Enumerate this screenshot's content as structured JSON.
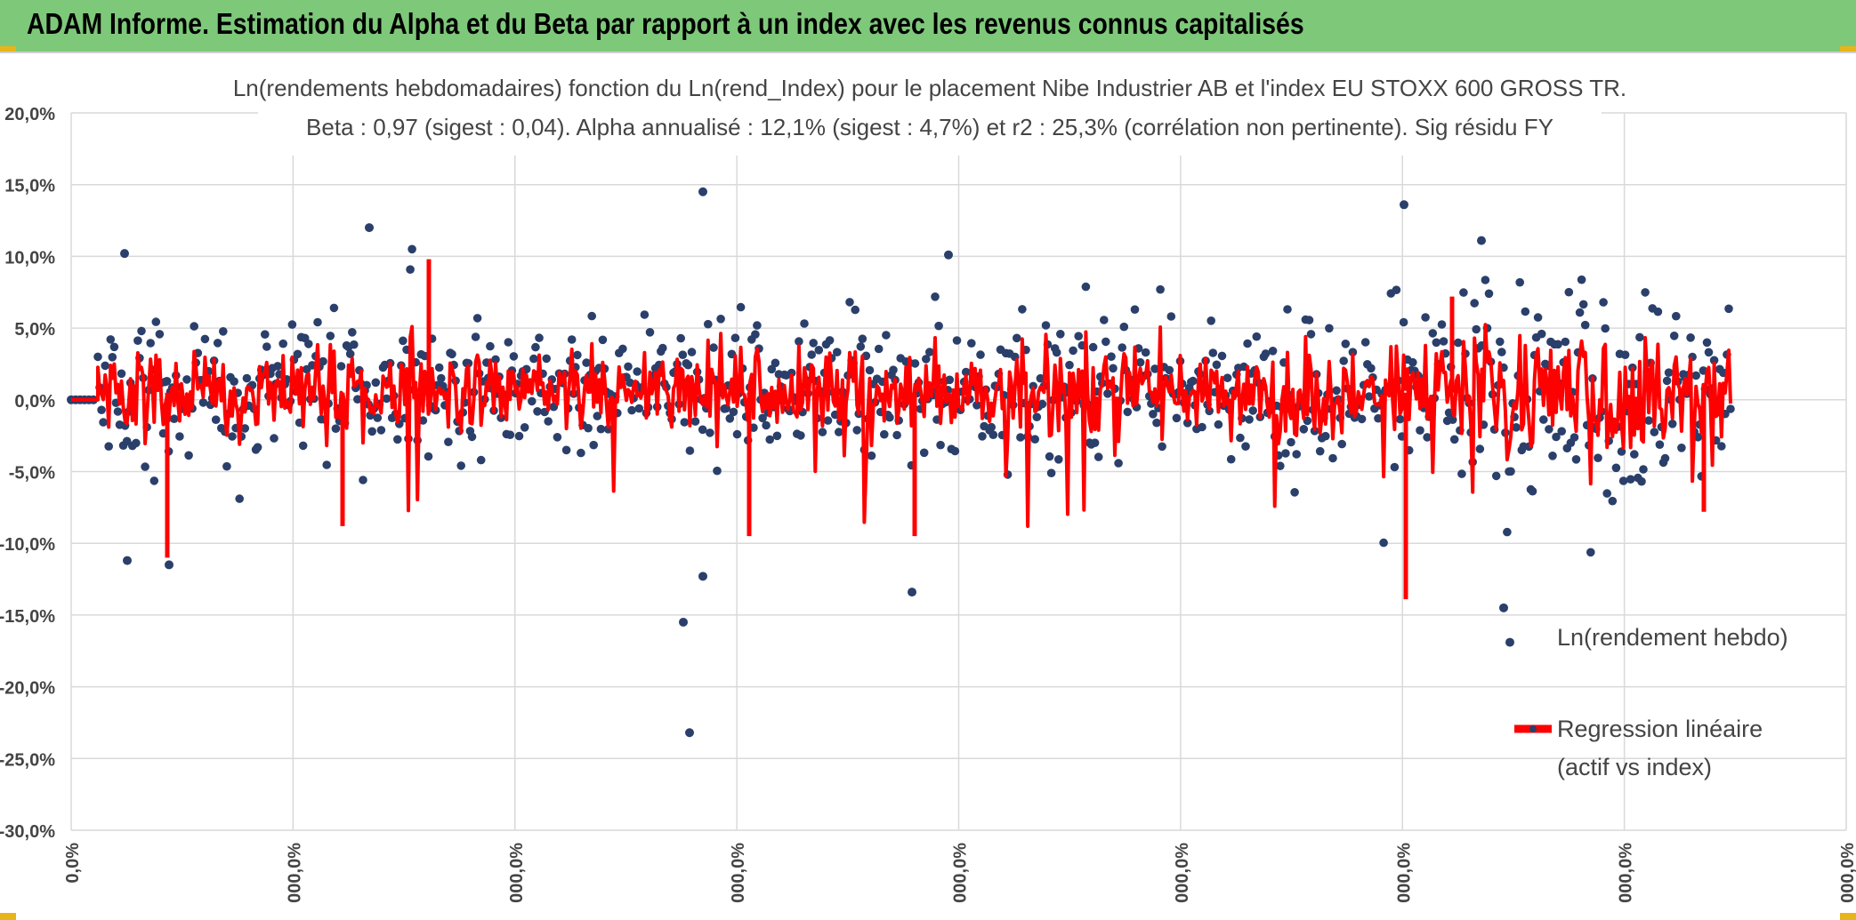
{
  "header": {
    "title": "ADAM Informe. Estimation du Alpha et du Beta par rapport à un index avec les revenus connus capitalisés"
  },
  "colors": {
    "header_bg": "#7ec87a",
    "points": "#2b3f6b",
    "regression": "#ff0000",
    "grid": "#d9d9d9",
    "accent": "#e7b41c"
  },
  "chart_data": {
    "type": "scatter",
    "title": "Ln(rendements hebdomadaires) fonction du Ln(rend_Index) pour le placement Nibe Industrier AB et l'index EU STOXX 600 GROSS TR.",
    "subtitle": "Beta : 0,97 (sigest : 0,04). Alpha annualisé : 12,1% (sigest : 4,7%) et r2 : 25,3% (corrélation non pertinente). Sig résidu FY",
    "y_ticks": [
      "20,0%",
      "15,0%",
      "10,0%",
      "5,0%",
      "0,0%",
      "-5,0%",
      "-10,0%",
      "-15,0%",
      "-20,0%",
      "-25,0%",
      "-30,0%"
    ],
    "ylim": [
      -30,
      20
    ],
    "x_ticks": [
      "0,0%",
      "000,0%",
      "000,0%",
      "000,0%",
      "000,0%",
      "000,0%",
      "000,0%",
      "000,0%",
      "000,0%"
    ],
    "legend": [
      {
        "name": "Ln(rendement hebdo)",
        "style": "markers"
      },
      {
        "name_line1": "Regression linéaire",
        "name_line2": "(actif vs index)",
        "style": "line"
      }
    ],
    "series_points_outliers": [
      14.5,
      13.6,
      12.0,
      11.1,
      10.2,
      10.1,
      -11.2,
      -11.5,
      -12.3,
      -13.4,
      -14.5,
      -15.5,
      -16.9,
      -23.2
    ],
    "series_range_typical": [
      -10,
      10
    ]
  }
}
